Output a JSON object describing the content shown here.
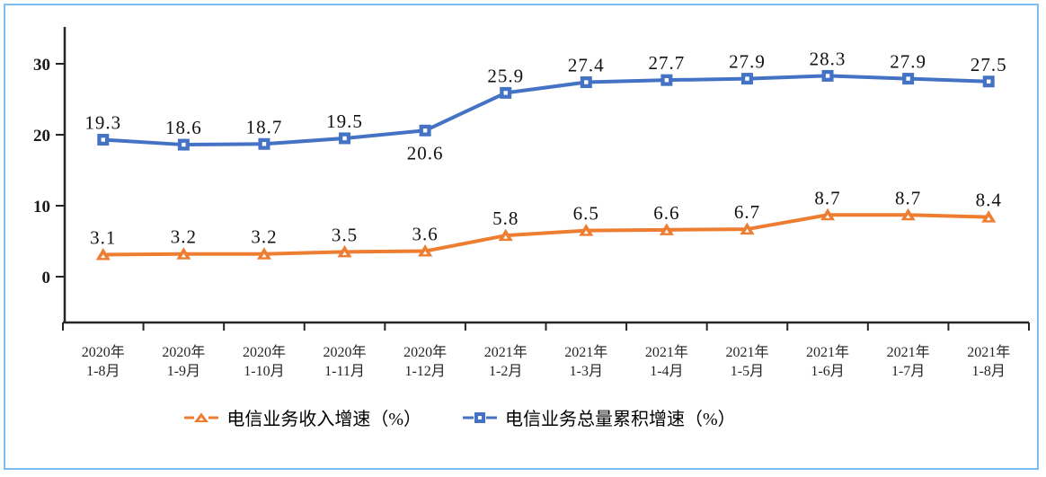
{
  "figure": {
    "border_color": "#7cbcee",
    "background": "#ffffff"
  },
  "chart_data": {
    "type": "line",
    "title": "",
    "xlabel": "",
    "ylabel": "",
    "categories": [
      [
        "2020年",
        "1-8月"
      ],
      [
        "2020年",
        "1-9月"
      ],
      [
        "2020年",
        "1-10月"
      ],
      [
        "2020年",
        "1-11月"
      ],
      [
        "2020年",
        "1-12月"
      ],
      [
        "2021年",
        "1-2月"
      ],
      [
        "2021年",
        "1-3月"
      ],
      [
        "2021年",
        "1-4月"
      ],
      [
        "2021年",
        "1-5月"
      ],
      [
        "2021年",
        "1-6月"
      ],
      [
        "2021年",
        "1-7月"
      ],
      [
        "2021年",
        "1-8月"
      ]
    ],
    "series": [
      {
        "name": "电信业务收入增速（%）",
        "marker": "triangle",
        "color": "#ED7D31",
        "values": [
          3.1,
          3.2,
          3.2,
          3.5,
          3.6,
          5.8,
          6.5,
          6.6,
          6.7,
          8.7,
          8.7,
          8.4
        ],
        "labels_below": []
      },
      {
        "name": "电信业务总量累积增速（%）",
        "marker": "square",
        "color": "#4472C4",
        "values": [
          19.3,
          18.6,
          18.7,
          19.5,
          20.6,
          25.9,
          27.4,
          27.7,
          27.9,
          28.3,
          27.9,
          27.5
        ],
        "labels_below": [
          4
        ]
      }
    ],
    "y_axis": {
      "ticks": [
        0,
        10,
        20,
        30
      ],
      "min": -6.5,
      "max": 35
    },
    "grid": false,
    "legend_position": "bottom",
    "colors": {
      "axis": "#262626",
      "text": "#1a1a1a"
    }
  }
}
